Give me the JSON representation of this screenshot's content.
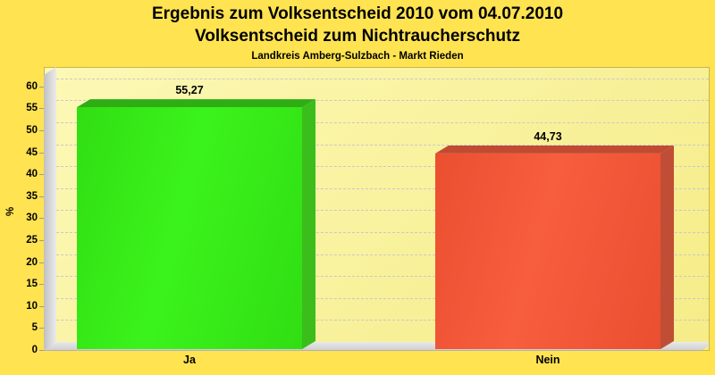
{
  "page": {
    "background_color": "#FFE351"
  },
  "header": {
    "title_line1": "Ergebnis zum Volksentscheid 2010 vom 04.07.2010",
    "title_line2": "Volksentscheid zum Nichtraucherschutz",
    "subtitle": "Landkreis Amberg-Sulzbach - Markt Rieden"
  },
  "chart_data": {
    "type": "bar",
    "style": "3d-bars",
    "title": "Ergebnis zum Volksentscheid 2010 vom 04.07.2010",
    "subtitle": "Volksentscheid zum Nichtraucherschutz",
    "region_line": "Landkreis Amberg-Sulzbach - Markt Rieden",
    "categories": [
      "Ja",
      "Nein"
    ],
    "values": [
      55.27,
      44.73
    ],
    "value_labels": [
      "55,27",
      "44,73"
    ],
    "xlabel": "",
    "ylabel": "%",
    "ylim": [
      0,
      60
    ],
    "ytick_step": 5,
    "grid": "horizontal-dashed",
    "legend": "none",
    "colors": {
      "bars": [
        {
          "name": "green-ja",
          "front": "#3BF31C",
          "front_edge": "#31DE12",
          "top": "#2FAD14",
          "side": "#3BBE1B"
        },
        {
          "name": "red-nein",
          "front": "#F75E3E",
          "front_edge": "#EA4F30",
          "top": "#C14A32",
          "side": "#C04E36"
        }
      ],
      "plot_background_from": "#FCF8B6",
      "plot_background_to": "#F6EC88",
      "outer_background": "#FFE351",
      "wall": "#D4D4D4",
      "gridline": "#C9C9C9"
    }
  }
}
